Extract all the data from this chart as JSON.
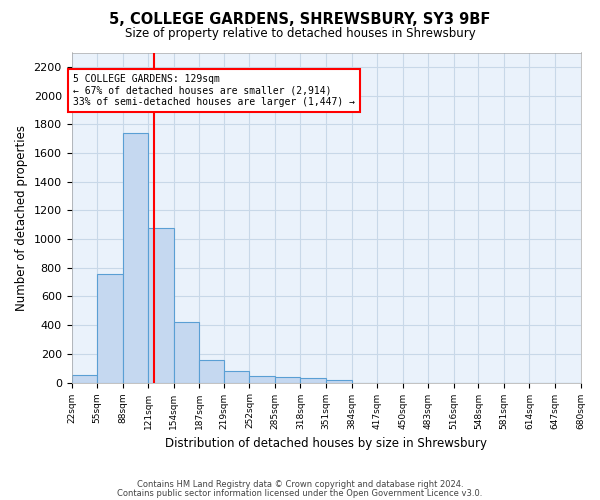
{
  "title": "5, COLLEGE GARDENS, SHREWSBURY, SY3 9BF",
  "subtitle": "Size of property relative to detached houses in Shrewsbury",
  "xlabel": "Distribution of detached houses by size in Shrewsbury",
  "ylabel": "Number of detached properties",
  "footer_line1": "Contains HM Land Registry data © Crown copyright and database right 2024.",
  "footer_line2": "Contains public sector information licensed under the Open Government Licence v3.0.",
  "bar_edges": [
    22,
    55,
    88,
    121,
    154,
    187,
    219,
    252,
    285,
    318,
    351,
    384,
    417,
    450,
    483,
    516,
    548,
    581,
    614,
    647,
    680
  ],
  "bar_heights": [
    55,
    760,
    1740,
    1075,
    420,
    155,
    80,
    48,
    40,
    30,
    15,
    0,
    0,
    0,
    0,
    0,
    0,
    0,
    0,
    0
  ],
  "bar_color": "#c5d8f0",
  "bar_edgecolor": "#5a9fd4",
  "grid_color": "#c8d8e8",
  "background_color": "#eaf2fb",
  "vline_x": 129,
  "vline_color": "red",
  "annotation_text": "5 COLLEGE GARDENS: 129sqm\n← 67% of detached houses are smaller (2,914)\n33% of semi-detached houses are larger (1,447) →",
  "annotation_box_color": "red",
  "ylim": [
    0,
    2300
  ],
  "yticks": [
    0,
    200,
    400,
    600,
    800,
    1000,
    1200,
    1400,
    1600,
    1800,
    2000,
    2200
  ]
}
